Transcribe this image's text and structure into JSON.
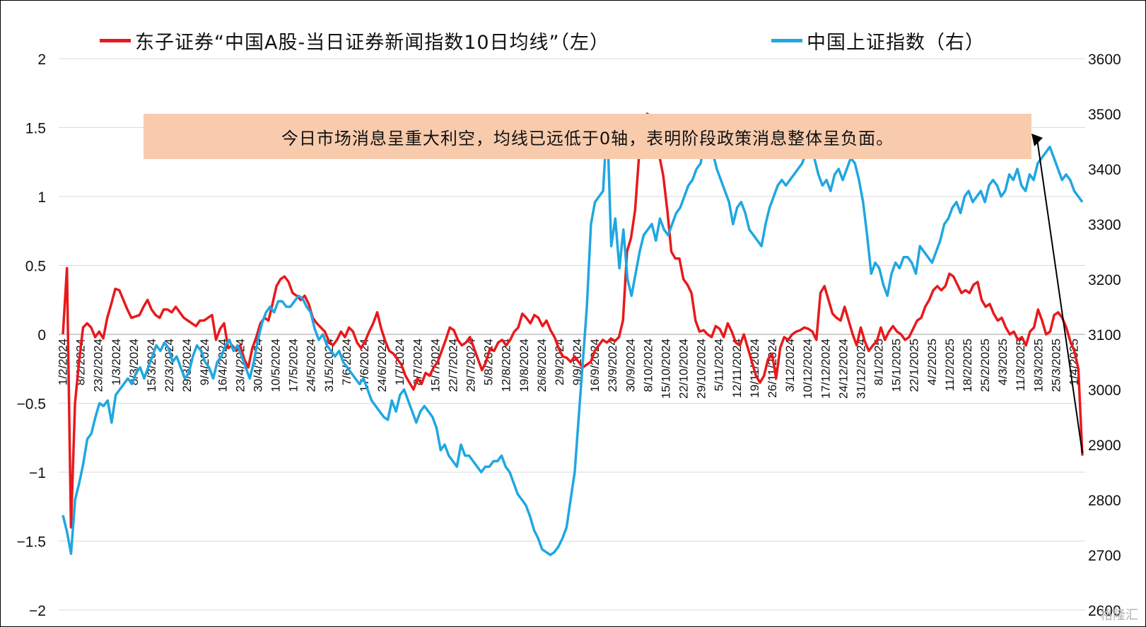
{
  "chart_data": {
    "type": "line",
    "legend": [
      {
        "name": "东子证券“中国A股-当日证券新闻指数10日均线”（左）",
        "color": "#e8191c"
      },
      {
        "name": "中国上证指数（右）",
        "color": "#1fa7e1"
      }
    ],
    "annotation": "今日市场消息呈重大利空，均线已远低于0轴，表明阶段政策消息整体呈负面。",
    "y_left": {
      "ticks": [
        "2",
        "1.5",
        "1",
        "0.5",
        "0",
        "−0.5",
        "−1",
        "−1.5",
        "−2"
      ],
      "range": [
        -2,
        2
      ]
    },
    "y_right": {
      "ticks": [
        "3600",
        "3500",
        "3400",
        "3300",
        "3200",
        "3100",
        "3000",
        "2900",
        "2800",
        "2700",
        "2600"
      ],
      "range": [
        2600,
        3600
      ]
    },
    "x_ticks": [
      "1/2/2024",
      "8/2/2024",
      "23/2/2024",
      "1/3/2024",
      "8/3/2024",
      "15/3/2024",
      "22/3/2024",
      "29/3/2024",
      "9/4/2024",
      "16/4/2024",
      "23/4/2024",
      "30/4/2024",
      "10/5/2024",
      "17/5/2024",
      "24/5/2024",
      "31/5/2024",
      "7/6/2024",
      "17/6/2024",
      "24/6/2024",
      "1/7/2024",
      "8/7/2024",
      "15/7/2024",
      "22/7/2024",
      "29/7/2024",
      "5/8/2024",
      "12/8/2024",
      "19/8/2024",
      "26/8/2024",
      "2/9/2024",
      "9/9/2024",
      "16/9/2024",
      "23/9/2024",
      "30/9/2024",
      "8/10/2024",
      "15/10/2024",
      "22/10/2024",
      "29/10/2024",
      "5/11/2024",
      "12/11/2024",
      "19/11/2024",
      "26/11/2024",
      "3/12/2024",
      "10/12/2024",
      "17/12/2024",
      "24/12/2024",
      "31/12/2024",
      "8/1/2025",
      "15/1/2025",
      "22/1/2025",
      "4/2/2025",
      "11/2/2025",
      "18/2/2025",
      "25/2/2025",
      "4/3/2025",
      "11/3/2025",
      "18/3/2025",
      "25/3/2025",
      "1/4/2025"
    ],
    "series": [
      {
        "name": "东子证券“中国A股-当日证券新闻指数10日均线”（左）",
        "axis": "left",
        "color": "#e8191c",
        "values": [
          0.0,
          0.48,
          -1.4,
          -0.5,
          -0.2,
          0.05,
          0.08,
          0.05,
          -0.02,
          0.02,
          -0.03,
          0.12,
          0.22,
          0.33,
          0.32,
          0.25,
          0.18,
          0.12,
          0.13,
          0.14,
          0.2,
          0.25,
          0.18,
          0.14,
          0.12,
          0.18,
          0.18,
          0.16,
          0.2,
          0.16,
          0.12,
          0.1,
          0.08,
          0.06,
          0.1,
          0.1,
          0.12,
          0.14,
          -0.04,
          0.04,
          0.08,
          -0.1,
          -0.08,
          -0.12,
          -0.08,
          -0.18,
          -0.24,
          -0.1,
          -0.02,
          0.08,
          0.12,
          0.1,
          0.22,
          0.35,
          0.4,
          0.42,
          0.38,
          0.3,
          0.28,
          0.25,
          0.28,
          0.22,
          0.12,
          0.08,
          0.05,
          0.02,
          -0.05,
          -0.08,
          -0.04,
          0.02,
          -0.02,
          0.05,
          0.02,
          -0.06,
          -0.1,
          -0.05,
          0.02,
          0.08,
          0.16,
          0.04,
          -0.05,
          -0.12,
          -0.14,
          -0.18,
          -0.22,
          -0.3,
          -0.35,
          -0.4,
          -0.32,
          -0.36,
          -0.28,
          -0.3,
          -0.24,
          -0.2,
          -0.12,
          -0.04,
          0.05,
          0.03,
          -0.04,
          -0.08,
          -0.06,
          -0.02,
          -0.1,
          -0.18,
          -0.26,
          -0.2,
          -0.1,
          -0.12,
          -0.06,
          -0.04,
          -0.08,
          -0.04,
          0.02,
          0.05,
          0.15,
          0.12,
          0.08,
          0.14,
          0.12,
          0.06,
          0.1,
          0.03,
          -0.02,
          -0.1,
          -0.16,
          -0.17,
          -0.2,
          -0.16,
          -0.2,
          -0.24,
          -0.22,
          -0.2,
          -0.12,
          -0.08,
          -0.04,
          -0.06,
          -0.03,
          -0.05,
          -0.02,
          0.1,
          0.6,
          0.7,
          0.9,
          1.3,
          1.55,
          1.6,
          1.58,
          1.5,
          1.3,
          1.15,
          0.9,
          0.6,
          0.55,
          0.55,
          0.4,
          0.36,
          0.3,
          0.1,
          0.02,
          0.03,
          0.0,
          -0.02,
          0.06,
          0.04,
          -0.02,
          0.08,
          0.02,
          -0.06,
          -0.08,
          0.0,
          -0.1,
          -0.2,
          -0.3,
          -0.35,
          -0.3,
          -0.18,
          -0.14,
          -0.32,
          -0.1,
          -0.02,
          -0.04,
          0.0,
          0.02,
          0.03,
          0.05,
          0.04,
          0.02,
          -0.04,
          0.3,
          0.35,
          0.25,
          0.15,
          0.12,
          0.1,
          0.2,
          0.1,
          0.0,
          -0.08,
          0.05,
          -0.05,
          -0.12,
          -0.08,
          -0.05,
          0.05,
          -0.04,
          0.02,
          0.06,
          0.02,
          0.0,
          -0.04,
          -0.02,
          0.04,
          0.1,
          0.12,
          0.2,
          0.25,
          0.32,
          0.35,
          0.32,
          0.35,
          0.44,
          0.42,
          0.36,
          0.3,
          0.32,
          0.3,
          0.36,
          0.38,
          0.25,
          0.2,
          0.22,
          0.15,
          0.1,
          0.12,
          0.05,
          0.0,
          0.02,
          -0.04,
          -0.02,
          -0.08,
          0.02,
          0.05,
          0.18,
          0.1,
          0.0,
          0.02,
          0.14,
          0.16,
          0.12,
          0.05,
          -0.05,
          -0.12,
          -0.25,
          -0.88
        ]
      },
      {
        "name": "中国上证指数（右）",
        "axis": "right",
        "color": "#1fa7e1",
        "values": [
          2772,
          2742,
          2702,
          2800,
          2830,
          2865,
          2910,
          2920,
          2950,
          2975,
          2970,
          2980,
          2940,
          2990,
          3000,
          3010,
          3020,
          3010,
          3030,
          3040,
          3020,
          3040,
          3060,
          3080,
          3070,
          3085,
          3075,
          3050,
          3060,
          3040,
          3020,
          3030,
          3060,
          3080,
          3070,
          3050,
          3040,
          3020,
          3050,
          3060,
          3080,
          3090,
          3070,
          3080,
          3060,
          3040,
          3020,
          3050,
          3090,
          3120,
          3140,
          3150,
          3140,
          3160,
          3160,
          3150,
          3150,
          3160,
          3170,
          3165,
          3150,
          3140,
          3110,
          3090,
          3100,
          3080,
          3070,
          3060,
          3070,
          3050,
          3040,
          3030,
          3020,
          3010,
          3020,
          3000,
          2980,
          2970,
          2960,
          2950,
          2945,
          2980,
          2960,
          2990,
          3000,
          2980,
          2960,
          2940,
          2960,
          2970,
          2960,
          2950,
          2930,
          2890,
          2900,
          2880,
          2870,
          2860,
          2900,
          2880,
          2880,
          2870,
          2860,
          2850,
          2860,
          2860,
          2870,
          2870,
          2880,
          2860,
          2850,
          2830,
          2810,
          2800,
          2790,
          2770,
          2745,
          2730,
          2710,
          2705,
          2700,
          2705,
          2715,
          2730,
          2750,
          2800,
          2850,
          2950,
          3050,
          3150,
          3300,
          3340,
          3350,
          3360,
          3490,
          3260,
          3310,
          3220,
          3290,
          3200,
          3170,
          3210,
          3250,
          3280,
          3290,
          3300,
          3270,
          3310,
          3290,
          3280,
          3300,
          3320,
          3330,
          3350,
          3370,
          3380,
          3400,
          3410,
          3450,
          3440,
          3430,
          3400,
          3380,
          3360,
          3340,
          3300,
          3330,
          3340,
          3320,
          3290,
          3280,
          3270,
          3260,
          3300,
          3330,
          3350,
          3370,
          3380,
          3370,
          3380,
          3390,
          3400,
          3410,
          3430,
          3440,
          3420,
          3390,
          3370,
          3380,
          3360,
          3390,
          3400,
          3380,
          3400,
          3420,
          3410,
          3380,
          3340,
          3280,
          3210,
          3230,
          3220,
          3190,
          3170,
          3210,
          3230,
          3220,
          3240,
          3240,
          3230,
          3210,
          3260,
          3250,
          3240,
          3230,
          3250,
          3270,
          3300,
          3310,
          3330,
          3340,
          3320,
          3350,
          3360,
          3340,
          3350,
          3360,
          3340,
          3370,
          3380,
          3370,
          3350,
          3360,
          3390,
          3380,
          3400,
          3370,
          3360,
          3390,
          3380,
          3410,
          3420,
          3430,
          3440,
          3420,
          3400,
          3380,
          3390,
          3380,
          3360,
          3350,
          3340
        ]
      }
    ]
  },
  "watermark": "格隆汇"
}
